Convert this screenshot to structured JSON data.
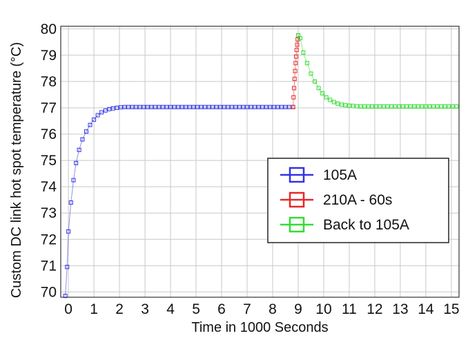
{
  "chart_data": {
    "type": "scatter",
    "xlabel": "Time in 1000 Seconds",
    "ylabel": "Custom DC link hot spot temperature (°C)",
    "xlim": [
      -0.3,
      15.3
    ],
    "ylim": [
      69.8,
      80.1
    ],
    "x_ticks": [
      0,
      1,
      2,
      3,
      4,
      5,
      6,
      7,
      8,
      9,
      10,
      11,
      12,
      13,
      14,
      15
    ],
    "y_ticks": [
      70,
      71,
      72,
      73,
      74,
      75,
      76,
      77,
      78,
      79,
      80
    ],
    "grid": true,
    "legend_position": "right",
    "series": [
      {
        "name": "105A",
        "color": "#3232e6",
        "marker": "square-open",
        "points": [
          [
            -0.12,
            69.85
          ],
          [
            -0.05,
            70.95
          ],
          [
            0.0,
            72.3
          ],
          [
            0.1,
            73.4
          ],
          [
            0.2,
            74.25
          ],
          [
            0.3,
            74.9
          ],
          [
            0.42,
            75.4
          ],
          [
            0.55,
            75.8
          ],
          [
            0.7,
            76.1
          ],
          [
            0.85,
            76.35
          ],
          [
            1.0,
            76.55
          ],
          [
            1.15,
            76.72
          ],
          [
            1.3,
            76.83
          ],
          [
            1.45,
            76.9
          ],
          [
            1.6,
            76.95
          ],
          [
            1.75,
            76.98
          ],
          [
            1.9,
            77.0
          ],
          [
            2.05,
            77.02
          ],
          [
            2.2,
            77.03
          ],
          [
            2.35,
            77.03
          ],
          [
            2.5,
            77.03
          ],
          [
            2.65,
            77.03
          ],
          [
            2.8,
            77.03
          ],
          [
            2.95,
            77.03
          ],
          [
            3.1,
            77.03
          ],
          [
            3.25,
            77.03
          ],
          [
            3.4,
            77.03
          ],
          [
            3.55,
            77.03
          ],
          [
            3.7,
            77.03
          ],
          [
            3.85,
            77.03
          ],
          [
            4.0,
            77.03
          ],
          [
            4.15,
            77.03
          ],
          [
            4.3,
            77.03
          ],
          [
            4.45,
            77.03
          ],
          [
            4.6,
            77.03
          ],
          [
            4.75,
            77.03
          ],
          [
            4.9,
            77.03
          ],
          [
            5.05,
            77.03
          ],
          [
            5.2,
            77.03
          ],
          [
            5.35,
            77.03
          ],
          [
            5.5,
            77.03
          ],
          [
            5.65,
            77.03
          ],
          [
            5.8,
            77.03
          ],
          [
            5.95,
            77.03
          ],
          [
            6.1,
            77.03
          ],
          [
            6.25,
            77.03
          ],
          [
            6.4,
            77.03
          ],
          [
            6.55,
            77.03
          ],
          [
            6.7,
            77.03
          ],
          [
            6.85,
            77.03
          ],
          [
            7.0,
            77.03
          ],
          [
            7.15,
            77.03
          ],
          [
            7.3,
            77.03
          ],
          [
            7.45,
            77.03
          ],
          [
            7.6,
            77.03
          ],
          [
            7.75,
            77.03
          ],
          [
            7.9,
            77.03
          ],
          [
            8.05,
            77.03
          ],
          [
            8.2,
            77.03
          ],
          [
            8.35,
            77.03
          ],
          [
            8.5,
            77.03
          ],
          [
            8.65,
            77.03
          ],
          [
            8.8,
            77.03
          ]
        ]
      },
      {
        "name": "210A - 60s",
        "color": "#e62828",
        "marker": "square-open",
        "points": [
          [
            8.8,
            77.03
          ],
          [
            8.82,
            77.4
          ],
          [
            8.84,
            77.75
          ],
          [
            8.86,
            78.1
          ],
          [
            8.88,
            78.4
          ],
          [
            8.9,
            78.7
          ],
          [
            8.92,
            78.95
          ],
          [
            8.94,
            79.2
          ],
          [
            8.96,
            79.4
          ],
          [
            8.98,
            79.6
          ],
          [
            9.0,
            79.75
          ]
        ]
      },
      {
        "name": "Back to 105A",
        "color": "#32dc32",
        "marker": "square-open",
        "points": [
          [
            9.0,
            79.75
          ],
          [
            9.08,
            79.65
          ],
          [
            9.2,
            79.1
          ],
          [
            9.35,
            78.7
          ],
          [
            9.5,
            78.3
          ],
          [
            9.65,
            78.0
          ],
          [
            9.8,
            77.75
          ],
          [
            9.95,
            77.55
          ],
          [
            10.1,
            77.4
          ],
          [
            10.25,
            77.3
          ],
          [
            10.4,
            77.22
          ],
          [
            10.55,
            77.16
          ],
          [
            10.7,
            77.12
          ],
          [
            10.85,
            77.1
          ],
          [
            11.0,
            77.08
          ],
          [
            11.15,
            77.07
          ],
          [
            11.3,
            77.06
          ],
          [
            11.45,
            77.05
          ],
          [
            11.6,
            77.05
          ],
          [
            11.75,
            77.05
          ],
          [
            11.9,
            77.05
          ],
          [
            12.05,
            77.05
          ],
          [
            12.2,
            77.05
          ],
          [
            12.35,
            77.05
          ],
          [
            12.5,
            77.05
          ],
          [
            12.65,
            77.05
          ],
          [
            12.8,
            77.05
          ],
          [
            12.95,
            77.05
          ],
          [
            13.1,
            77.05
          ],
          [
            13.25,
            77.05
          ],
          [
            13.4,
            77.05
          ],
          [
            13.55,
            77.05
          ],
          [
            13.7,
            77.05
          ],
          [
            13.85,
            77.05
          ],
          [
            14.0,
            77.05
          ],
          [
            14.15,
            77.05
          ],
          [
            14.3,
            77.05
          ],
          [
            14.45,
            77.05
          ],
          [
            14.6,
            77.05
          ],
          [
            14.75,
            77.05
          ],
          [
            14.9,
            77.05
          ],
          [
            15.05,
            77.05
          ],
          [
            15.2,
            77.05
          ]
        ]
      }
    ]
  }
}
